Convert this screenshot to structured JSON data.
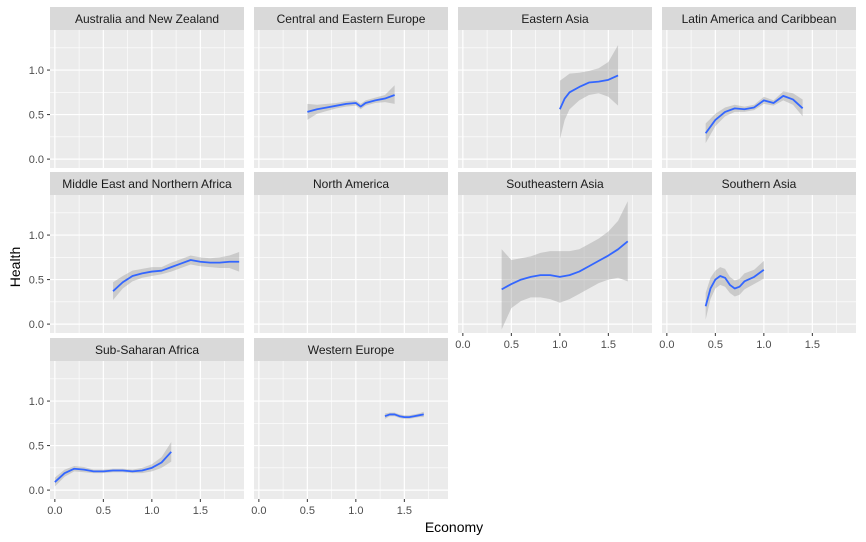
{
  "chart_data": {
    "type": "line",
    "subtype": "faceted smooth with confidence band",
    "xlabel": "Economy",
    "ylabel": "Health",
    "xlim": [
      -0.05,
      1.95
    ],
    "ylim": [
      -0.1,
      1.45
    ],
    "x_ticks": [
      0.0,
      0.5,
      1.0,
      1.5
    ],
    "x_tick_labels": [
      "0.0",
      "0.5",
      "1.0",
      "1.5"
    ],
    "y_ticks": [
      0.0,
      0.5,
      1.0
    ],
    "y_tick_labels": [
      "0.0",
      "0.5",
      "1.0"
    ],
    "grid": true,
    "colors": {
      "line": "#3366FF",
      "band": "#999999",
      "panel": "#EBEBEB",
      "strip": "#D9D9D9"
    },
    "facets": [
      {
        "name": "Australia and New Zealand",
        "x": [],
        "y": [],
        "lower": [],
        "upper": []
      },
      {
        "name": "Central and Eastern Europe",
        "x": [
          0.5,
          0.6,
          0.7,
          0.8,
          0.9,
          1.0,
          1.05,
          1.1,
          1.2,
          1.3,
          1.4
        ],
        "y": [
          0.53,
          0.56,
          0.58,
          0.6,
          0.62,
          0.63,
          0.59,
          0.63,
          0.66,
          0.68,
          0.72
        ],
        "lower": [
          0.44,
          0.51,
          0.54,
          0.57,
          0.59,
          0.6,
          0.56,
          0.6,
          0.63,
          0.64,
          0.62
        ],
        "upper": [
          0.62,
          0.61,
          0.62,
          0.63,
          0.65,
          0.66,
          0.62,
          0.66,
          0.69,
          0.72,
          0.83
        ]
      },
      {
        "name": "Eastern Asia",
        "x": [
          1.0,
          1.05,
          1.1,
          1.2,
          1.3,
          1.4,
          1.5,
          1.6
        ],
        "y": [
          0.56,
          0.68,
          0.75,
          0.81,
          0.86,
          0.87,
          0.89,
          0.94
        ],
        "lower": [
          0.22,
          0.44,
          0.56,
          0.66,
          0.72,
          0.74,
          0.7,
          0.6
        ],
        "upper": [
          0.88,
          0.92,
          0.96,
          0.97,
          0.99,
          1.02,
          1.09,
          1.28
        ]
      },
      {
        "name": "Latin America and Caribbean",
        "x": [
          0.4,
          0.5,
          0.6,
          0.7,
          0.8,
          0.9,
          1.0,
          1.1,
          1.2,
          1.3,
          1.4
        ],
        "y": [
          0.29,
          0.44,
          0.53,
          0.57,
          0.56,
          0.58,
          0.66,
          0.63,
          0.71,
          0.67,
          0.57
        ],
        "lower": [
          0.18,
          0.37,
          0.48,
          0.53,
          0.53,
          0.55,
          0.62,
          0.6,
          0.66,
          0.61,
          0.48
        ],
        "upper": [
          0.4,
          0.51,
          0.58,
          0.61,
          0.59,
          0.61,
          0.7,
          0.66,
          0.76,
          0.74,
          0.67
        ]
      },
      {
        "name": "Middle East and Northern Africa",
        "x": [
          0.6,
          0.7,
          0.8,
          0.9,
          1.0,
          1.1,
          1.2,
          1.3,
          1.4,
          1.5,
          1.6,
          1.7,
          1.8,
          1.9
        ],
        "y": [
          0.37,
          0.47,
          0.54,
          0.57,
          0.59,
          0.6,
          0.64,
          0.68,
          0.72,
          0.7,
          0.69,
          0.69,
          0.7,
          0.7
        ],
        "lower": [
          0.27,
          0.4,
          0.48,
          0.52,
          0.54,
          0.56,
          0.59,
          0.63,
          0.67,
          0.65,
          0.64,
          0.63,
          0.63,
          0.59
        ],
        "upper": [
          0.47,
          0.54,
          0.6,
          0.62,
          0.64,
          0.64,
          0.69,
          0.73,
          0.77,
          0.75,
          0.74,
          0.75,
          0.77,
          0.81
        ]
      },
      {
        "name": "North America",
        "x": [],
        "y": [],
        "lower": [],
        "upper": []
      },
      {
        "name": "Southeastern Asia",
        "x": [
          0.4,
          0.5,
          0.6,
          0.7,
          0.8,
          0.9,
          1.0,
          1.1,
          1.2,
          1.3,
          1.4,
          1.5,
          1.6,
          1.7
        ],
        "y": [
          0.39,
          0.45,
          0.5,
          0.53,
          0.55,
          0.55,
          0.53,
          0.55,
          0.59,
          0.65,
          0.71,
          0.77,
          0.84,
          0.93
        ],
        "lower": [
          -0.06,
          0.18,
          0.26,
          0.3,
          0.3,
          0.28,
          0.24,
          0.28,
          0.34,
          0.4,
          0.46,
          0.5,
          0.52,
          0.48
        ],
        "upper": [
          0.84,
          0.72,
          0.74,
          0.76,
          0.8,
          0.82,
          0.82,
          0.82,
          0.84,
          0.9,
          0.96,
          1.04,
          1.16,
          1.38
        ]
      },
      {
        "name": "Southern Asia",
        "x": [
          0.4,
          0.45,
          0.5,
          0.55,
          0.6,
          0.65,
          0.7,
          0.75,
          0.8,
          0.9,
          1.0
        ],
        "y": [
          0.2,
          0.4,
          0.5,
          0.54,
          0.52,
          0.44,
          0.4,
          0.42,
          0.48,
          0.53,
          0.61
        ],
        "lower": [
          0.05,
          0.28,
          0.4,
          0.44,
          0.42,
          0.35,
          0.31,
          0.33,
          0.39,
          0.45,
          0.51
        ],
        "upper": [
          0.35,
          0.52,
          0.6,
          0.64,
          0.62,
          0.53,
          0.49,
          0.51,
          0.57,
          0.61,
          0.71
        ]
      },
      {
        "name": "Sub-Saharan Africa",
        "x": [
          0.0,
          0.1,
          0.2,
          0.3,
          0.4,
          0.5,
          0.6,
          0.7,
          0.8,
          0.9,
          1.0,
          1.1,
          1.2
        ],
        "y": [
          0.09,
          0.19,
          0.24,
          0.23,
          0.21,
          0.21,
          0.22,
          0.22,
          0.21,
          0.22,
          0.25,
          0.31,
          0.43
        ],
        "lower": [
          0.04,
          0.15,
          0.21,
          0.2,
          0.19,
          0.19,
          0.2,
          0.2,
          0.19,
          0.19,
          0.21,
          0.25,
          0.32
        ],
        "upper": [
          0.14,
          0.23,
          0.27,
          0.26,
          0.23,
          0.23,
          0.24,
          0.24,
          0.23,
          0.25,
          0.29,
          0.37,
          0.54
        ]
      },
      {
        "name": "Western Europe",
        "x": [
          1.3,
          1.35,
          1.4,
          1.45,
          1.5,
          1.55,
          1.6,
          1.65,
          1.7
        ],
        "y": [
          0.83,
          0.85,
          0.85,
          0.83,
          0.82,
          0.82,
          0.83,
          0.84,
          0.85
        ],
        "lower": [
          0.8,
          0.83,
          0.83,
          0.81,
          0.8,
          0.8,
          0.81,
          0.82,
          0.82
        ],
        "upper": [
          0.86,
          0.87,
          0.87,
          0.85,
          0.84,
          0.84,
          0.85,
          0.86,
          0.88
        ]
      }
    ]
  }
}
